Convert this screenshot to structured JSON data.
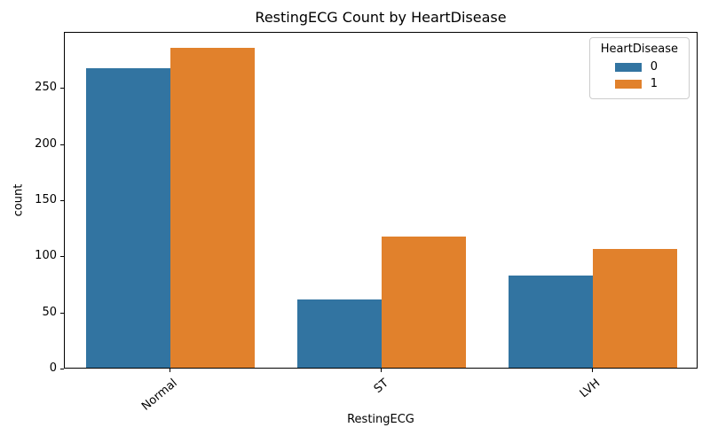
{
  "chart_data": {
    "type": "bar",
    "title": "RestingECG Count by HeartDisease",
    "xlabel": "RestingECG",
    "ylabel": "count",
    "categories": [
      "Normal",
      "ST",
      "LVH"
    ],
    "series": [
      {
        "name": "0",
        "color": "#3274a1",
        "values": [
          267,
          61,
          82
        ]
      },
      {
        "name": "1",
        "color": "#e1812c",
        "values": [
          285,
          117,
          106
        ]
      }
    ],
    "legend_title": "HeartDisease",
    "legend_position": "upper right",
    "ylim": [
      0,
      300
    ],
    "yticks": [
      0,
      50,
      100,
      150,
      200,
      250
    ],
    "grid": false,
    "x_tick_rotation": -40,
    "bar_group_width_fraction": 0.8,
    "axis_color": "#000000",
    "background_color": "#ffffff"
  }
}
